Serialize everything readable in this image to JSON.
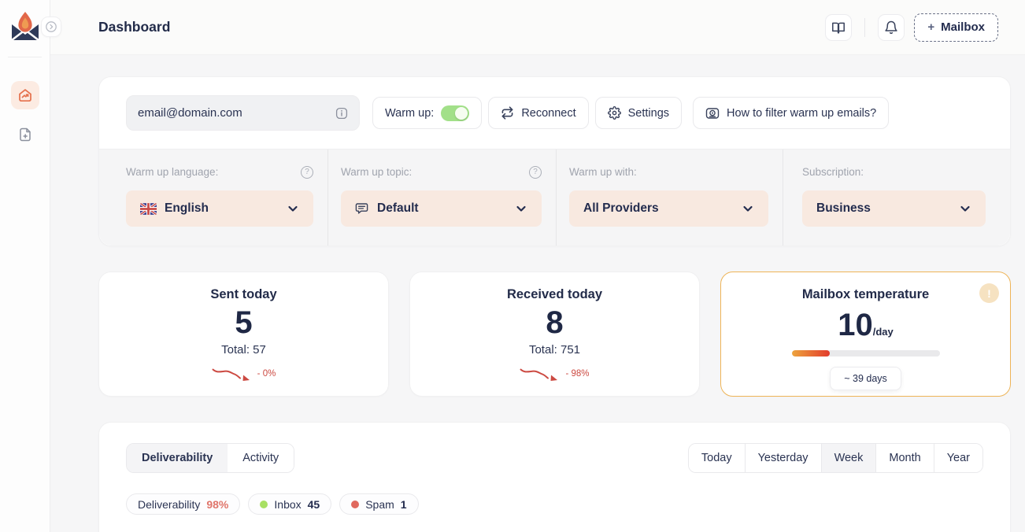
{
  "header": {
    "title": "Dashboard",
    "mailbox_plus": "+",
    "mailbox_label": "Mailbox"
  },
  "mailbox_card": {
    "email": "email@domain.com",
    "warmup_label": "Warm up:",
    "warmup_on": true,
    "reconnect_label": "Reconnect",
    "settings_label": "Settings",
    "howto_label": "How to filter warm up emails?",
    "settings": [
      {
        "label": "Warm up language:",
        "value": "English",
        "has_help": true,
        "icon": "uk-flag"
      },
      {
        "label": "Warm up topic:",
        "value": "Default",
        "has_help": true,
        "icon": "chat"
      },
      {
        "label": "Warm up with:",
        "value": "All Providers",
        "has_help": false,
        "icon": null
      },
      {
        "label": "Subscription:",
        "value": "Business",
        "has_help": false,
        "icon": null
      }
    ]
  },
  "stats": {
    "sent": {
      "title": "Sent today",
      "value": "5",
      "total": "Total: 57",
      "change": "- 0%"
    },
    "received": {
      "title": "Received today",
      "value": "8",
      "total": "Total: 751",
      "change": "- 98%"
    },
    "temperature": {
      "title": "Mailbox temperature",
      "value": "10",
      "unit": "/day",
      "days": "~ 39 days",
      "progress_pct": 26
    }
  },
  "bottom": {
    "tabs": [
      "Deliverability",
      "Activity"
    ],
    "active_tab": "Deliverability",
    "ranges": [
      "Today",
      "Yesterday",
      "Week",
      "Month",
      "Year"
    ],
    "active_range": "Week",
    "badges": [
      {
        "label": "Deliverability",
        "value": "98%",
        "dot": null
      },
      {
        "label": "Inbox",
        "value": "45",
        "dot": "#a8e063"
      },
      {
        "label": "Spam",
        "value": "1",
        "dot": "#e0695e"
      }
    ]
  },
  "colors": {
    "accent_orange": "#e5704c",
    "navy": "#232c4e",
    "toggle_green": "#a2e089",
    "temp_border": "#eeb457",
    "progress_start": "#eda43d",
    "progress_end": "#e23b2c",
    "decline_red": "#cc4a42",
    "dropdown_peach": "#f8e9e0"
  }
}
